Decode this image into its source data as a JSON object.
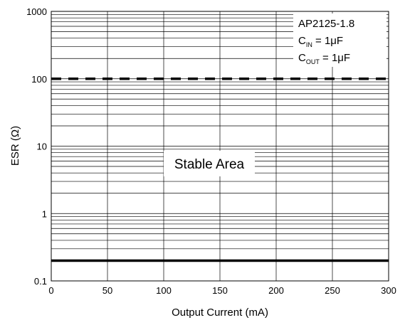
{
  "chart_data": {
    "type": "line",
    "title": "",
    "xlabel": "Output Current (mA)",
    "ylabel": "ESR (Ω)",
    "x_scale": "linear",
    "y_scale": "log",
    "xlim": [
      0,
      300
    ],
    "ylim": [
      0.1,
      1000
    ],
    "x_ticks": [
      0,
      50,
      100,
      150,
      200,
      250,
      300
    ],
    "y_ticks": [
      0.1,
      1,
      10,
      100,
      1000
    ],
    "grid": true,
    "annotations": {
      "device": "AP2125-1.8",
      "cin_prefix": "C",
      "cin_sub": "IN",
      "cin_value": " = 1μF",
      "cout_prefix": "C",
      "cout_sub": "OUT",
      "cout_value": " = 1μF",
      "region": "Stable Area"
    },
    "series": [
      {
        "style": "dashed",
        "x": [
          0,
          300
        ],
        "y": [
          100,
          100
        ]
      },
      {
        "style": "solid",
        "x": [
          0,
          300
        ],
        "y": [
          0.2,
          0.2
        ]
      }
    ]
  }
}
